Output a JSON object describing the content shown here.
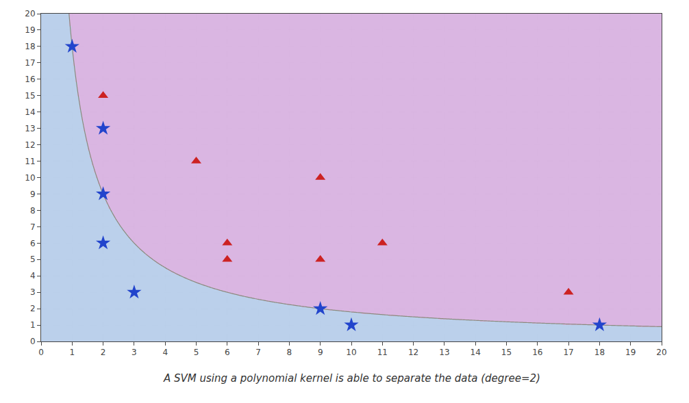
{
  "chart_data": {
    "type": "scatter",
    "caption": "A SVM using a polynomial kernel is able to separate the data (degree=2)",
    "series": [
      {
        "marker": "star",
        "color": "#2244cc",
        "x": [
          1,
          2,
          2,
          2,
          3,
          9,
          10,
          18
        ],
        "values": [
          18,
          13,
          9,
          6,
          3,
          2,
          1,
          1
        ]
      },
      {
        "marker": "triangle",
        "color": "#cc2222",
        "x": [
          2,
          5,
          9,
          6,
          11,
          6,
          9,
          17
        ],
        "values": [
          15,
          11,
          10,
          6,
          6,
          5,
          5,
          3
        ]
      }
    ],
    "decision_boundary": {
      "xy": 18,
      "color": "#8a8a7e",
      "below_color": "#b0c8e8",
      "above_color": "#d4aadd"
    },
    "xlim": [
      0,
      20
    ],
    "ylim": [
      0,
      20
    ],
    "xticks": [
      0,
      1,
      2,
      3,
      4,
      5,
      6,
      7,
      8,
      9,
      10,
      11,
      12,
      13,
      14,
      15,
      16,
      17,
      18,
      19,
      20
    ],
    "yticks": [
      0,
      1,
      2,
      3,
      4,
      5,
      6,
      7,
      8,
      9,
      10,
      11,
      12,
      13,
      14,
      15,
      16,
      17,
      18,
      19,
      20
    ],
    "grid": true
  }
}
